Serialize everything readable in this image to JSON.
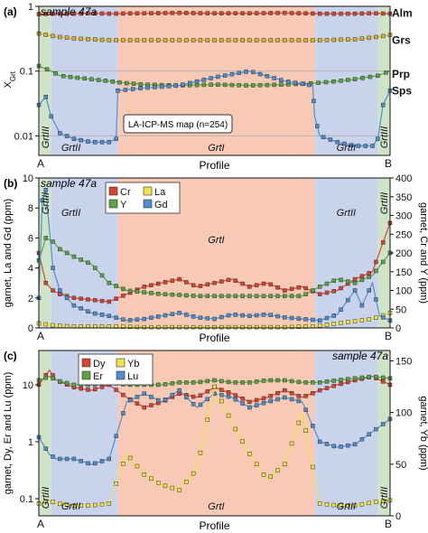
{
  "figure": {
    "colors": {
      "zone_grt3": "#cfe3c6",
      "zone_grt2": "#c9d3ec",
      "zone_grt1": "#f8c9b5",
      "Alm": "#d9432f",
      "Grs": "#d8b43a",
      "Prp": "#5aa443",
      "Sps": "#4f8fd0",
      "Cr": "#d9432f",
      "La": "#f2e24a",
      "Y": "#5aa443",
      "Gd": "#4f8fd0",
      "Dy": "#d9432f",
      "Yb": "#f2e24a",
      "Er": "#5aa443",
      "Lu": "#4f8fd0"
    }
  },
  "chart_data": [
    {
      "panel": "(a)",
      "type": "line",
      "title": "sample 47a",
      "xlabel": "Profile",
      "ylabel": "XGrt",
      "ylabel_main": "X",
      "ylabel_sub": "Grt",
      "yscale": "log",
      "ylim": [
        0.005,
        1.0
      ],
      "yticks": [
        0.01,
        0.1,
        1
      ],
      "ytick_labels": [
        "0.01",
        "0.1",
        "1"
      ],
      "x_end_labels": [
        "A",
        "B"
      ],
      "xlim": [
        0,
        1
      ],
      "zones": [
        {
          "label": "GrtIII",
          "from": 0.0,
          "to": 0.035
        },
        {
          "label": "GrtII",
          "from": 0.035,
          "to": 0.225
        },
        {
          "label": "GrtI",
          "from": 0.225,
          "to": 0.785
        },
        {
          "label": "GrtII",
          "from": 0.785,
          "to": 0.965
        },
        {
          "label": "GrtIII",
          "from": 0.965,
          "to": 1.0
        }
      ],
      "annotation": "LA-ICP-MS map (n=254)",
      "series": [
        {
          "name": "Alm",
          "x": [
            0,
            0.05,
            0.1,
            0.15,
            0.2,
            0.3,
            0.4,
            0.5,
            0.6,
            0.7,
            0.8,
            0.9,
            0.95,
            1.0
          ],
          "y": [
            0.76,
            0.77,
            0.77,
            0.78,
            0.77,
            0.78,
            0.79,
            0.78,
            0.78,
            0.79,
            0.77,
            0.77,
            0.78,
            0.77
          ]
        },
        {
          "name": "Grs",
          "x": [
            0,
            0.05,
            0.1,
            0.2,
            0.3,
            0.4,
            0.5,
            0.6,
            0.7,
            0.8,
            0.9,
            0.95,
            1.0
          ],
          "y": [
            0.38,
            0.34,
            0.32,
            0.3,
            0.3,
            0.3,
            0.3,
            0.3,
            0.3,
            0.3,
            0.31,
            0.33,
            0.36
          ]
        },
        {
          "name": "Prp",
          "x": [
            0,
            0.035,
            0.06,
            0.1,
            0.15,
            0.2,
            0.25,
            0.3,
            0.4,
            0.5,
            0.6,
            0.7,
            0.785,
            0.85,
            0.9,
            0.965,
            1.0
          ],
          "y": [
            0.12,
            0.1,
            0.085,
            0.08,
            0.075,
            0.07,
            0.065,
            0.062,
            0.06,
            0.062,
            0.06,
            0.062,
            0.065,
            0.07,
            0.075,
            0.085,
            0.1
          ]
        },
        {
          "name": "Sps",
          "x": [
            0,
            0.02,
            0.035,
            0.06,
            0.1,
            0.15,
            0.2,
            0.22,
            0.225,
            0.3,
            0.4,
            0.5,
            0.6,
            0.7,
            0.78,
            0.785,
            0.8,
            0.85,
            0.9,
            0.95,
            0.965,
            0.98,
            1.0
          ],
          "y": [
            0.03,
            0.04,
            0.02,
            0.011,
            0.009,
            0.008,
            0.008,
            0.009,
            0.05,
            0.055,
            0.06,
            0.08,
            0.1,
            0.07,
            0.06,
            0.02,
            0.01,
            0.008,
            0.007,
            0.007,
            0.009,
            0.03,
            0.05
          ]
        }
      ]
    },
    {
      "panel": "(b)",
      "type": "line",
      "title": "sample 47a",
      "xlabel": "Profile",
      "ylabel": "garnet, La and Gd (ppm)",
      "y2label": "garnet, Cr and Y (ppm)",
      "ylim": [
        0,
        10
      ],
      "y2lim": [
        0,
        400
      ],
      "yticks": [
        0,
        2,
        4,
        6,
        8,
        10
      ],
      "y2ticks": [
        0,
        50,
        100,
        150,
        200,
        250,
        300,
        350,
        400
      ],
      "x_end_labels": [
        "A",
        "B"
      ],
      "legend": [
        "Cr",
        "La",
        "Y",
        "Gd"
      ],
      "legend_position": "top-left",
      "zones": [
        {
          "label": "GrtIII",
          "from": 0.0,
          "to": 0.035
        },
        {
          "label": "GrtII",
          "from": 0.035,
          "to": 0.225
        },
        {
          "label": "GrtI",
          "from": 0.225,
          "to": 0.785
        },
        {
          "label": "GrtII",
          "from": 0.785,
          "to": 0.965
        },
        {
          "label": "GrtIII",
          "from": 0.965,
          "to": 1.0
        }
      ],
      "series": [
        {
          "name": "Cr",
          "axis": "right",
          "x": [
            0,
            0.02,
            0.04,
            0.06,
            0.1,
            0.15,
            0.2,
            0.25,
            0.3,
            0.35,
            0.4,
            0.45,
            0.5,
            0.55,
            0.6,
            0.65,
            0.7,
            0.75,
            0.8,
            0.85,
            0.9,
            0.95,
            1.0
          ],
          "y": [
            200,
            120,
            100,
            90,
            80,
            75,
            70,
            90,
            110,
            120,
            130,
            110,
            120,
            130,
            110,
            120,
            100,
            110,
            90,
            100,
            130,
            150,
            280
          ]
        },
        {
          "name": "Y",
          "axis": "right",
          "x": [
            0,
            0.02,
            0.04,
            0.06,
            0.1,
            0.15,
            0.2,
            0.25,
            0.3,
            0.35,
            0.4,
            0.45,
            0.5,
            0.55,
            0.6,
            0.65,
            0.7,
            0.75,
            0.8,
            0.85,
            0.9,
            0.95,
            1.0
          ],
          "y": [
            180,
            240,
            230,
            210,
            190,
            170,
            120,
            100,
            95,
            90,
            88,
            85,
            85,
            85,
            85,
            85,
            85,
            85,
            110,
            130,
            120,
            140,
            200
          ]
        },
        {
          "name": "La",
          "axis": "left",
          "x": [
            0,
            0.05,
            0.1,
            0.2,
            0.3,
            0.4,
            0.5,
            0.6,
            0.7,
            0.78,
            0.85,
            0.95,
            1.0
          ],
          "y": [
            0.3,
            0.15,
            0.1,
            0.1,
            0.05,
            0.05,
            0.05,
            0.05,
            0.05,
            0.1,
            0.3,
            0.6,
            1.0
          ]
        },
        {
          "name": "Gd",
          "axis": "left",
          "x": [
            0,
            0.01,
            0.02,
            0.04,
            0.06,
            0.1,
            0.15,
            0.2,
            0.25,
            0.3,
            0.35,
            0.4,
            0.45,
            0.5,
            0.55,
            0.6,
            0.65,
            0.7,
            0.75,
            0.8,
            0.85,
            0.9,
            0.92,
            0.95,
            0.97,
            1.0
          ],
          "y": [
            2.0,
            8.5,
            9.2,
            4.0,
            2.5,
            1.5,
            1.0,
            0.8,
            0.5,
            0.6,
            0.8,
            1.0,
            0.7,
            0.6,
            0.9,
            0.8,
            0.9,
            0.7,
            0.6,
            0.5,
            0.9,
            2.5,
            1.5,
            3.0,
            0.8,
            0.5
          ]
        }
      ]
    },
    {
      "panel": "(c)",
      "type": "line",
      "title": "sample 47a",
      "xlabel": "Profile",
      "ylabel": "garnet, Dy, Er and Lu (ppm)",
      "y2label": "garnet, Yb (ppm)",
      "yscale": "log",
      "ylim": [
        0.05,
        40
      ],
      "y2lim": [
        0,
        160
      ],
      "yticks": [
        0.1,
        1,
        10
      ],
      "ytick_labels": [
        "0.1",
        "1",
        "10"
      ],
      "y2ticks": [
        0,
        50,
        100,
        150
      ],
      "x_end_labels": [
        "A",
        "B"
      ],
      "legend": [
        "Dy",
        "Yb",
        "Er",
        "Lu"
      ],
      "legend_position": "top-left",
      "zones": [
        {
          "label": "GrtIII",
          "from": 0.0,
          "to": 0.035
        },
        {
          "label": "GrtII",
          "from": 0.035,
          "to": 0.225
        },
        {
          "label": "GrtI",
          "from": 0.225,
          "to": 0.785
        },
        {
          "label": "GrtII",
          "from": 0.785,
          "to": 0.965
        },
        {
          "label": "GrtIII",
          "from": 0.965,
          "to": 1.0
        }
      ],
      "series": [
        {
          "name": "Dy",
          "axis": "left",
          "x": [
            0,
            0.03,
            0.05,
            0.1,
            0.15,
            0.2,
            0.25,
            0.3,
            0.35,
            0.4,
            0.45,
            0.5,
            0.55,
            0.6,
            0.65,
            0.7,
            0.75,
            0.8,
            0.85,
            0.9,
            0.95,
            1.0
          ],
          "y": [
            10,
            18,
            12,
            9,
            8,
            10,
            6,
            4,
            5,
            7,
            6,
            9,
            7,
            5,
            6,
            8,
            6,
            8,
            10,
            12,
            14,
            10
          ]
        },
        {
          "name": "Er",
          "axis": "left",
          "x": [
            0,
            0.03,
            0.05,
            0.1,
            0.15,
            0.2,
            0.25,
            0.3,
            0.35,
            0.4,
            0.45,
            0.5,
            0.55,
            0.6,
            0.65,
            0.7,
            0.75,
            0.8,
            0.85,
            0.9,
            0.95,
            1.0
          ],
          "y": [
            12,
            14,
            12,
            10,
            10,
            11,
            10,
            10,
            10,
            11,
            11,
            12,
            11,
            11,
            12,
            12,
            11,
            11,
            12,
            13,
            14,
            13
          ]
        },
        {
          "name": "Lu",
          "axis": "left",
          "x": [
            0,
            0.03,
            0.05,
            0.1,
            0.15,
            0.2,
            0.25,
            0.3,
            0.35,
            0.4,
            0.45,
            0.5,
            0.55,
            0.6,
            0.65,
            0.7,
            0.75,
            0.8,
            0.85,
            0.9,
            0.95,
            1.0
          ],
          "y": [
            1.2,
            0.6,
            0.5,
            0.5,
            0.4,
            0.5,
            5,
            7,
            5,
            8,
            4,
            7,
            6,
            4,
            5,
            6,
            5,
            1.0,
            0.8,
            0.9,
            1.5,
            2.5
          ]
        },
        {
          "name": "Yb",
          "axis": "right",
          "x": [
            0,
            0.03,
            0.05,
            0.1,
            0.15,
            0.2,
            0.25,
            0.3,
            0.35,
            0.4,
            0.45,
            0.5,
            0.55,
            0.6,
            0.65,
            0.7,
            0.75,
            0.8,
            0.85,
            0.9,
            0.95,
            1.0
          ],
          "y": [
            12,
            15,
            12,
            10,
            10,
            12,
            60,
            40,
            30,
            25,
            45,
            125,
            90,
            60,
            35,
            50,
            100,
            12,
            10,
            10,
            13,
            15
          ]
        }
      ]
    }
  ]
}
